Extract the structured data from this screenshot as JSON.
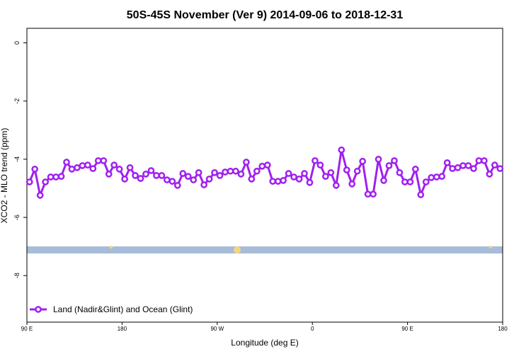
{
  "chart_data": {
    "type": "line",
    "title": "50S-45S November (Ver 9)   2014-09-06 to 2018-12-31",
    "x_label": "Longitude (deg E)",
    "y_label": "XCO2 - MLO trend (ppm)",
    "x": [
      92.5,
      97.5,
      102.5,
      107.5,
      112.5,
      117.5,
      122.5,
      127.5,
      132.5,
      137.5,
      142.5,
      147.5,
      152.5,
      157.5,
      162.5,
      167.5,
      172.5,
      177.5,
      182.5,
      187.5,
      192.5,
      197.5,
      202.5,
      207.5,
      212.5,
      217.5,
      222.5,
      227.5,
      232.5,
      237.5,
      242.5,
      247.5,
      252.5,
      257.5,
      262.5,
      267.5,
      272.5,
      277.5,
      282.5,
      287.5,
      292.5,
      297.5,
      302.5,
      307.5,
      312.5,
      317.5,
      322.5,
      327.5,
      332.5,
      337.5,
      342.5,
      347.5,
      352.5,
      357.5,
      362.5,
      367.5,
      372.5,
      377.5,
      382.5,
      387.5,
      392.5,
      397.5,
      402.5,
      407.5,
      412.5,
      417.5,
      422.5,
      427.5,
      432.5,
      437.5,
      442.5,
      447.5,
      452.5,
      457.5,
      462.5,
      467.5,
      472.5,
      477.5,
      482.5,
      487.5,
      492.5,
      497.5,
      502.5,
      507.5,
      512.5,
      517.5,
      522.5,
      527.5,
      532.5,
      537.5
    ],
    "series": [
      {
        "name": "Land (Nadir&Glint) and Ocean (Glint)",
        "color": "#a020f0",
        "values": [
          -4.78,
          -4.34,
          -5.24,
          -4.78,
          -4.61,
          -4.61,
          -4.59,
          -4.1,
          -4.34,
          -4.29,
          -4.22,
          -4.2,
          -4.32,
          -4.05,
          -4.05,
          -4.51,
          -4.2,
          -4.34,
          -4.68,
          -4.29,
          -4.56,
          -4.66,
          -4.51,
          -4.39,
          -4.56,
          -4.56,
          -4.71,
          -4.76,
          -4.9,
          -4.49,
          -4.59,
          -4.71,
          -4.46,
          -4.88,
          -4.68,
          -4.46,
          -4.56,
          -4.44,
          -4.41,
          -4.41,
          -4.51,
          -4.1,
          -4.68,
          -4.41,
          -4.24,
          -4.2,
          -4.76,
          -4.76,
          -4.73,
          -4.49,
          -4.61,
          -4.68,
          -4.49,
          -4.8,
          -4.05,
          -4.2,
          -4.59,
          -4.46,
          -4.9,
          -3.68,
          -4.37,
          -4.85,
          -4.41,
          -4.07,
          -5.2,
          -5.2,
          -4.0,
          -4.73,
          -4.22,
          -4.05,
          -4.46,
          -4.78,
          -4.78,
          -4.34,
          -5.22,
          -4.78,
          -4.63,
          -4.61,
          -4.59,
          -4.12,
          -4.32,
          -4.29,
          -4.22,
          -4.22,
          -4.32,
          -4.05,
          -4.05,
          -4.51,
          -4.2,
          -4.32
        ]
      }
    ],
    "xlim": [
      90,
      540
    ],
    "xticks": [
      {
        "value": 90,
        "label": "90 E"
      },
      180,
      {
        "value": 270,
        "label": "90 W"
      },
      {
        "value": 360,
        "label": "0"
      },
      {
        "value": 450,
        "label": "90 E"
      },
      {
        "value": 540,
        "label": "180"
      }
    ],
    "ylim": [
      -9.6,
      0.5
    ],
    "yticks": [
      0,
      -2,
      -4,
      -6,
      -8
    ],
    "legend": "bottom-left"
  }
}
